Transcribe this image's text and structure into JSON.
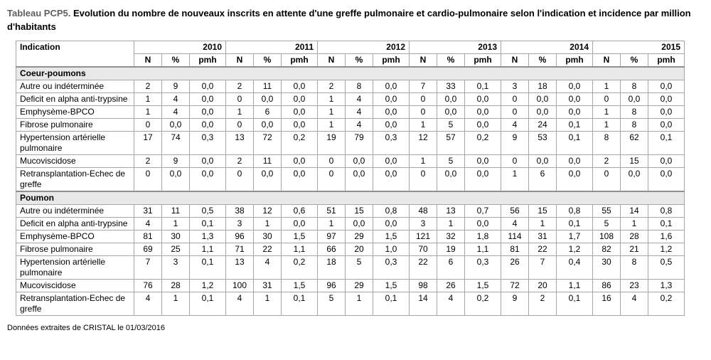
{
  "title": {
    "prefix": "Tableau PCP5.",
    "text": "Evolution du nombre de nouveaux inscrits en attente d'une greffe pulmonaire et cardio-pulmonaire selon l'indication et incidence par million d'habitants"
  },
  "footer": "Données extraites de CRISTAL le 01/03/2016",
  "colors": {
    "section_row_bg": "#e8e8e8",
    "grid_border": "#a6a6a6",
    "outer_border": "#8f8f8f",
    "title_prefix": "#5f5f5f"
  },
  "table": {
    "indication_header": "Indication",
    "years": [
      "2010",
      "2011",
      "2012",
      "2013",
      "2014",
      "2015"
    ],
    "sub_headers": [
      "N",
      "%",
      "pmh"
    ],
    "sections": [
      {
        "name": "Coeur-poumons",
        "rows": [
          {
            "label": "Autre ou indéterminée",
            "values": [
              "2",
              "9",
              "0,0",
              "2",
              "11",
              "0,0",
              "2",
              "8",
              "0,0",
              "7",
              "33",
              "0,1",
              "3",
              "18",
              "0,0",
              "1",
              "8",
              "0,0"
            ]
          },
          {
            "label": "Deficit en alpha anti-trypsine",
            "values": [
              "1",
              "4",
              "0,0",
              "0",
              "0,0",
              "0,0",
              "1",
              "4",
              "0,0",
              "0",
              "0,0",
              "0,0",
              "0",
              "0,0",
              "0,0",
              "0",
              "0,0",
              "0,0"
            ]
          },
          {
            "label": "Emphysème-BPCO",
            "values": [
              "1",
              "4",
              "0,0",
              "1",
              "6",
              "0,0",
              "1",
              "4",
              "0,0",
              "0",
              "0,0",
              "0,0",
              "0",
              "0,0",
              "0,0",
              "1",
              "8",
              "0,0"
            ]
          },
          {
            "label": "Fibrose pulmonaire",
            "values": [
              "0",
              "0,0",
              "0,0",
              "0",
              "0,0",
              "0,0",
              "1",
              "4",
              "0,0",
              "1",
              "5",
              "0,0",
              "4",
              "24",
              "0,1",
              "1",
              "8",
              "0,0"
            ]
          },
          {
            "label": "Hypertension artérielle pulmonaire",
            "values": [
              "17",
              "74",
              "0,3",
              "13",
              "72",
              "0,2",
              "19",
              "79",
              "0,3",
              "12",
              "57",
              "0,2",
              "9",
              "53",
              "0,1",
              "8",
              "62",
              "0,1"
            ]
          },
          {
            "label": "Mucoviscidose",
            "values": [
              "2",
              "9",
              "0,0",
              "2",
              "11",
              "0,0",
              "0",
              "0,0",
              "0,0",
              "1",
              "5",
              "0,0",
              "0",
              "0,0",
              "0,0",
              "2",
              "15",
              "0,0"
            ]
          },
          {
            "label": "Retransplantation-Echec de greffe",
            "values": [
              "0",
              "0,0",
              "0,0",
              "0",
              "0,0",
              "0,0",
              "0",
              "0,0",
              "0,0",
              "0",
              "0,0",
              "0,0",
              "1",
              "6",
              "0,0",
              "0",
              "0,0",
              "0,0"
            ]
          }
        ]
      },
      {
        "name": "Poumon",
        "rows": [
          {
            "label": "Autre ou indéterminée",
            "values": [
              "31",
              "11",
              "0,5",
              "38",
              "12",
              "0,6",
              "51",
              "15",
              "0,8",
              "48",
              "13",
              "0,7",
              "56",
              "15",
              "0,8",
              "55",
              "14",
              "0,8"
            ]
          },
          {
            "label": "Deficit en alpha anti-trypsine",
            "values": [
              "4",
              "1",
              "0,1",
              "3",
              "1",
              "0,0",
              "1",
              "0,0",
              "0,0",
              "3",
              "1",
              "0,0",
              "4",
              "1",
              "0,1",
              "5",
              "1",
              "0,1"
            ]
          },
          {
            "label": "Emphysème-BPCO",
            "values": [
              "81",
              "30",
              "1,3",
              "96",
              "30",
              "1,5",
              "97",
              "29",
              "1,5",
              "121",
              "32",
              "1,8",
              "114",
              "31",
              "1,7",
              "108",
              "28",
              "1,6"
            ]
          },
          {
            "label": "Fibrose pulmonaire",
            "values": [
              "69",
              "25",
              "1,1",
              "71",
              "22",
              "1,1",
              "66",
              "20",
              "1,0",
              "70",
              "19",
              "1,1",
              "81",
              "22",
              "1,2",
              "82",
              "21",
              "1,2"
            ]
          },
          {
            "label": "Hypertension artérielle pulmonaire",
            "values": [
              "7",
              "3",
              "0,1",
              "13",
              "4",
              "0,2",
              "18",
              "5",
              "0,3",
              "22",
              "6",
              "0,3",
              "26",
              "7",
              "0,4",
              "30",
              "8",
              "0,5"
            ]
          },
          {
            "label": "Mucoviscidose",
            "values": [
              "76",
              "28",
              "1,2",
              "100",
              "31",
              "1,5",
              "96",
              "29",
              "1,5",
              "98",
              "26",
              "1,5",
              "72",
              "20",
              "1,1",
              "86",
              "23",
              "1,3"
            ]
          },
          {
            "label": "Retransplantation-Echec de greffe",
            "values": [
              "4",
              "1",
              "0,1",
              "4",
              "1",
              "0,1",
              "5",
              "1",
              "0,1",
              "14",
              "4",
              "0,2",
              "9",
              "2",
              "0,1",
              "16",
              "4",
              "0,2"
            ]
          }
        ]
      }
    ]
  }
}
